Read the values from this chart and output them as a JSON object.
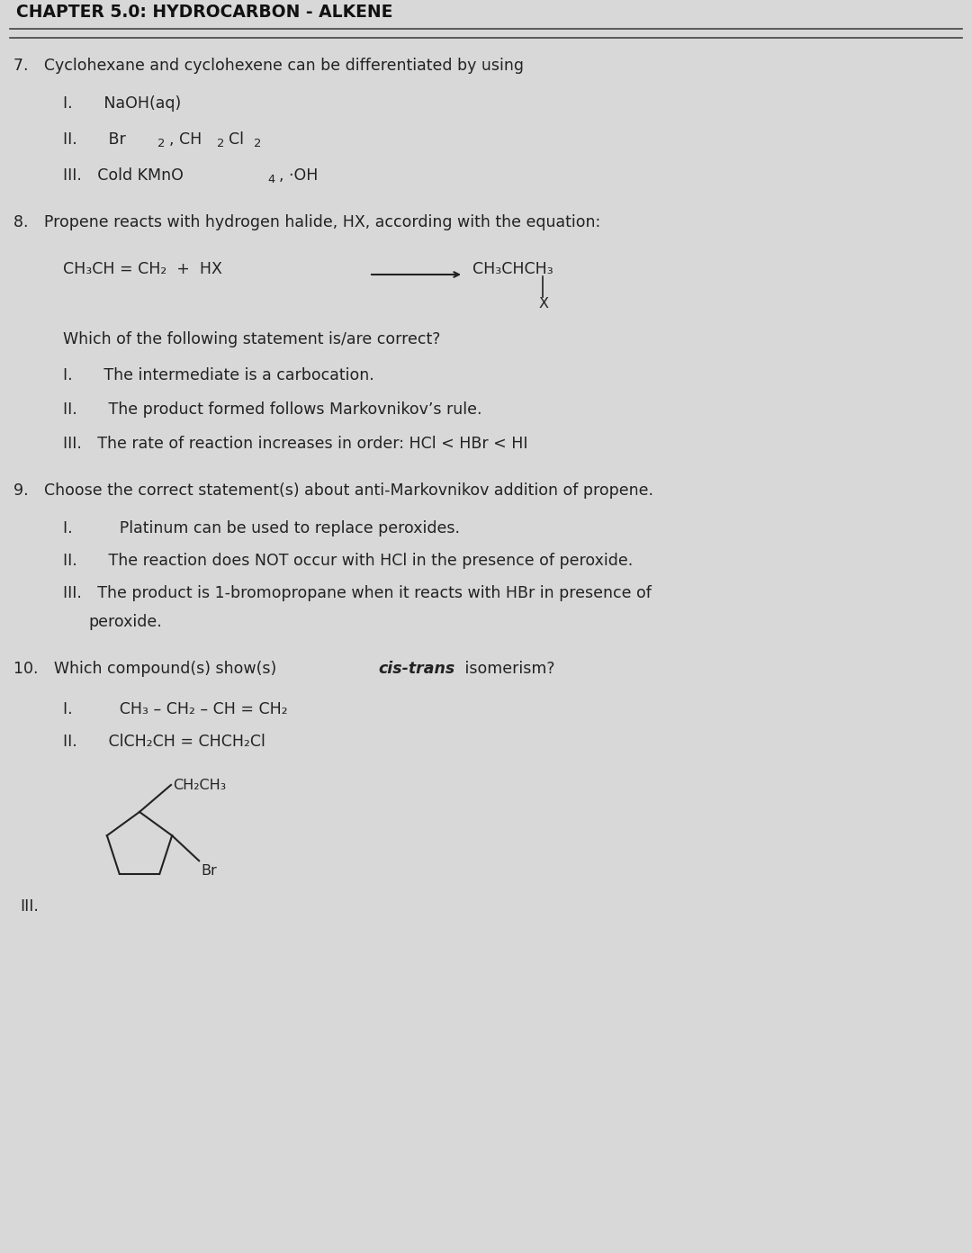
{
  "title": "CHAPTER 5.0: HYDROCARBON - ALKENE",
  "bg_color": "#d8d8d8",
  "text_color": "#222222",
  "title_color": "#111111",
  "title_fontsize": 13.5,
  "body_fontsize": 12.5,
  "small_fontsize": 11.5,
  "question7": "7. Cyclohexane and cyclohexene can be differentiated by using",
  "q7_I": "I.  NaOH(aq)",
  "q7_II_a": "II.  Br",
  "q7_II_b": "2",
  "q7_II_c": ", CH",
  "q7_II_d": "2",
  "q7_II_e": "Cl",
  "q7_II_f": "2",
  "q7_III_a": "III. Cold KMnO",
  "q7_III_b": "4",
  "q7_III_c": ", ·OH",
  "question8": "8. Propene reacts with hydrogen halide, HX, according with the equation:",
  "q8_eq_left": "CH₃CH = CH₂  +  HX",
  "q8_eq_arrow": "⟶",
  "q8_eq_right": "CH₃CHCH₃",
  "q8_X": "X",
  "q8_stmt": "Which of the following statement is/are correct?",
  "q8_I": "I.  The intermediate is a carbocation.",
  "q8_II": "II.  The product formed follows Markovnikov’s rule.",
  "q8_III": "III. The rate of reaction increases in order: HCl < HBr < HI",
  "question9": "9. Choose the correct statement(s) about anti-Markovnikov addition of propene.",
  "q9_I": "I.   Platinum can be used to replace peroxides.",
  "q9_II": "II.  The reaction does NOT occur with HCl in the presence of peroxide.",
  "q9_III_a": "III. The product is 1-bromopropane when it reacts with HBr in presence of",
  "q9_III_b": "peroxide.",
  "question10": "10. Which compound(s) show(s)               isomerism?",
  "q10_cis_trans": "cis-trans",
  "q10_I": "I.   CH₃ – CH₂ – CH = CH₂",
  "q10_II": "II.  ClCH₂CH = CHCH₂Cl",
  "q10_III": "III."
}
